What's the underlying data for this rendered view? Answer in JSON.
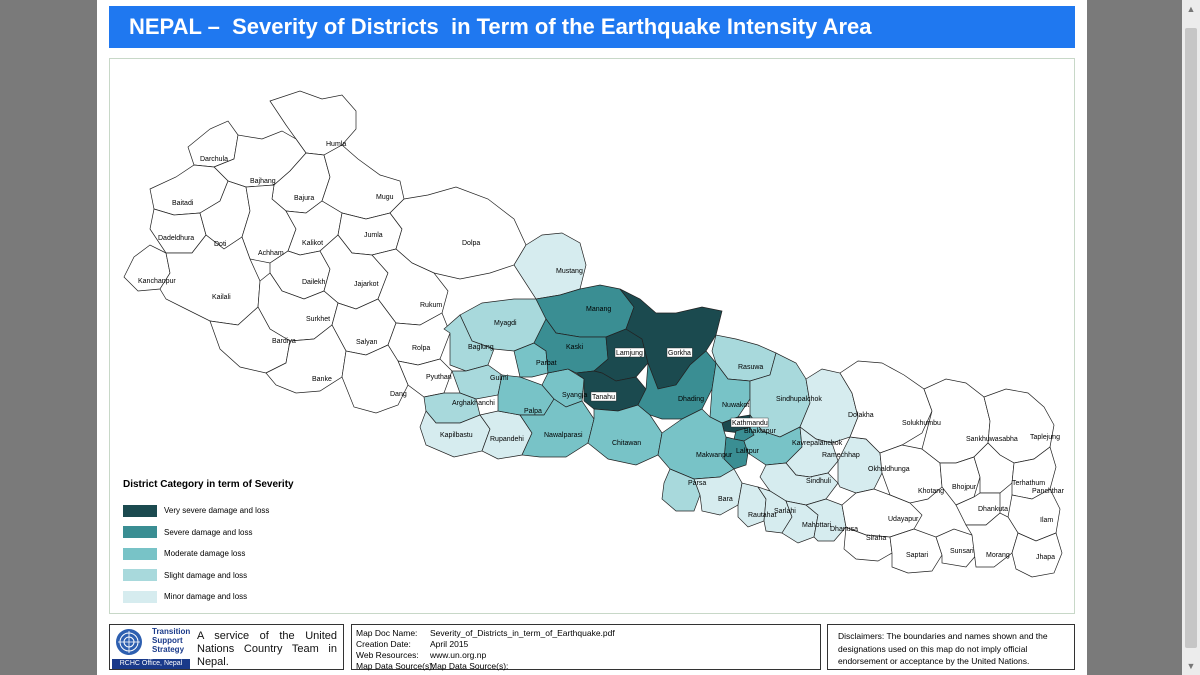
{
  "title": "NEPAL –  Severity of Districts  in Term of the Earthquake Intensity Area",
  "colors": {
    "very_severe": "#1b4a4f",
    "severe": "#3a8e93",
    "moderate": "#78c3c7",
    "slight": "#a8d9dc",
    "minor": "#d6ecef",
    "none": "#ffffff",
    "title_bg": "#1f78f0"
  },
  "legend": {
    "title": "District Category in term of Severity",
    "items": [
      {
        "label": "Very severe damage and loss",
        "category": "very_severe"
      },
      {
        "label": "Severe damage  and loss",
        "category": "severe"
      },
      {
        "label": "Moderate damage loss",
        "category": "moderate"
      },
      {
        "label": "Slight damage and loss",
        "category": "slight"
      },
      {
        "label": "Minor damage and loss",
        "category": "minor"
      }
    ]
  },
  "districts": [
    {
      "name": "Darchula",
      "category": "none"
    },
    {
      "name": "Humla",
      "category": "none"
    },
    {
      "name": "Bajhang",
      "category": "none"
    },
    {
      "name": "Baitadi",
      "category": "none"
    },
    {
      "name": "Bajura",
      "category": "none"
    },
    {
      "name": "Mugu",
      "category": "none"
    },
    {
      "name": "Dadeldhura",
      "category": "none"
    },
    {
      "name": "Doti",
      "category": "none"
    },
    {
      "name": "Achham",
      "category": "none"
    },
    {
      "name": "Kalikot",
      "category": "none"
    },
    {
      "name": "Jumla",
      "category": "none"
    },
    {
      "name": "Dolpa",
      "category": "none"
    },
    {
      "name": "Kanchanpur",
      "category": "none"
    },
    {
      "name": "Kailali",
      "category": "none"
    },
    {
      "name": "Dailekh",
      "category": "none"
    },
    {
      "name": "Jajarkot",
      "category": "none"
    },
    {
      "name": "Surkhet",
      "category": "none"
    },
    {
      "name": "Rukum",
      "category": "none"
    },
    {
      "name": "Bardiya",
      "category": "none"
    },
    {
      "name": "Salyan",
      "category": "none"
    },
    {
      "name": "Rolpa",
      "category": "none"
    },
    {
      "name": "Banke",
      "category": "none"
    },
    {
      "name": "Pyuthan",
      "category": "none"
    },
    {
      "name": "Dang",
      "category": "none"
    },
    {
      "name": "Mustang",
      "category": "minor"
    },
    {
      "name": "Myagdi",
      "category": "slight"
    },
    {
      "name": "Baglung",
      "category": "slight"
    },
    {
      "name": "Gulmi",
      "category": "slight"
    },
    {
      "name": "Arghakhanchi",
      "category": "slight"
    },
    {
      "name": "Kapilbastu",
      "category": "minor"
    },
    {
      "name": "Rupandehi",
      "category": "minor"
    },
    {
      "name": "Palpa",
      "category": "moderate"
    },
    {
      "name": "Parbat",
      "category": "moderate"
    },
    {
      "name": "Syangja",
      "category": "moderate"
    },
    {
      "name": "Nawalparasi",
      "category": "moderate"
    },
    {
      "name": "Manang",
      "category": "severe"
    },
    {
      "name": "Kaski",
      "category": "severe"
    },
    {
      "name": "Lamjung",
      "category": "very_severe"
    },
    {
      "name": "Gorkha",
      "category": "very_severe"
    },
    {
      "name": "Tanahu",
      "category": "very_severe"
    },
    {
      "name": "Chitawan",
      "category": "moderate"
    },
    {
      "name": "Dhading",
      "category": "severe"
    },
    {
      "name": "Rasuwa",
      "category": "slight"
    },
    {
      "name": "Nuwakot",
      "category": "moderate"
    },
    {
      "name": "Sindhupalchok",
      "category": "slight"
    },
    {
      "name": "Kathmandu",
      "category": "very_severe"
    },
    {
      "name": "Bhaktapur",
      "category": "severe"
    },
    {
      "name": "Lalitpur",
      "category": "severe"
    },
    {
      "name": "Kavrepalanchok",
      "category": "moderate"
    },
    {
      "name": "Makwanpur",
      "category": "moderate"
    },
    {
      "name": "Dolakha",
      "category": "minor"
    },
    {
      "name": "Ramechhap",
      "category": "minor"
    },
    {
      "name": "Sindhuli",
      "category": "minor"
    },
    {
      "name": "Parsa",
      "category": "slight"
    },
    {
      "name": "Bara",
      "category": "minor"
    },
    {
      "name": "Rautahat",
      "category": "minor"
    },
    {
      "name": "Sarlahi",
      "category": "minor"
    },
    {
      "name": "Mahottari",
      "category": "minor"
    },
    {
      "name": "Dhanusa",
      "category": "minor"
    },
    {
      "name": "Okhaldhunga",
      "category": "minor"
    },
    {
      "name": "Solukhumbu",
      "category": "none"
    },
    {
      "name": "Khotang",
      "category": "none"
    },
    {
      "name": "Udayapur",
      "category": "none"
    },
    {
      "name": "Siraha",
      "category": "none"
    },
    {
      "name": "Saptari",
      "category": "none"
    },
    {
      "name": "Sankhuwasabha",
      "category": "none"
    },
    {
      "name": "Bhojpur",
      "category": "none"
    },
    {
      "name": "Sunsari",
      "category": "none"
    },
    {
      "name": "Taplejung",
      "category": "none"
    },
    {
      "name": "Terhathum",
      "category": "none"
    },
    {
      "name": "Panchthar",
      "category": "none"
    },
    {
      "name": "Dhankuta",
      "category": "none"
    },
    {
      "name": "Ilam",
      "category": "none"
    },
    {
      "name": "Morang",
      "category": "none"
    },
    {
      "name": "Jhapa",
      "category": "none"
    }
  ],
  "footer": {
    "org_line1": "Transition",
    "org_line2": "Support",
    "org_line3": "Strategy",
    "rchc": "RCHC Office, Nepal",
    "service": "A service of the United Nations Country Team in Nepal.",
    "meta": [
      {
        "key": "Map Doc Name:",
        "value": "Severity_of_Districts_in_term_of_Earthquake.pdf"
      },
      {
        "key": "Creation Date:",
        "value": "April 2015"
      },
      {
        "key": "Web Resources:",
        "value": "www.un.org.np"
      },
      {
        "key": "Map Data Source(s):",
        "value": "Map Data Source(s):"
      }
    ],
    "disclaimer": "Disclaimers: The boundaries and names shown and the designations used on this map do not imply official endorsement or acceptance by the United Nations."
  }
}
